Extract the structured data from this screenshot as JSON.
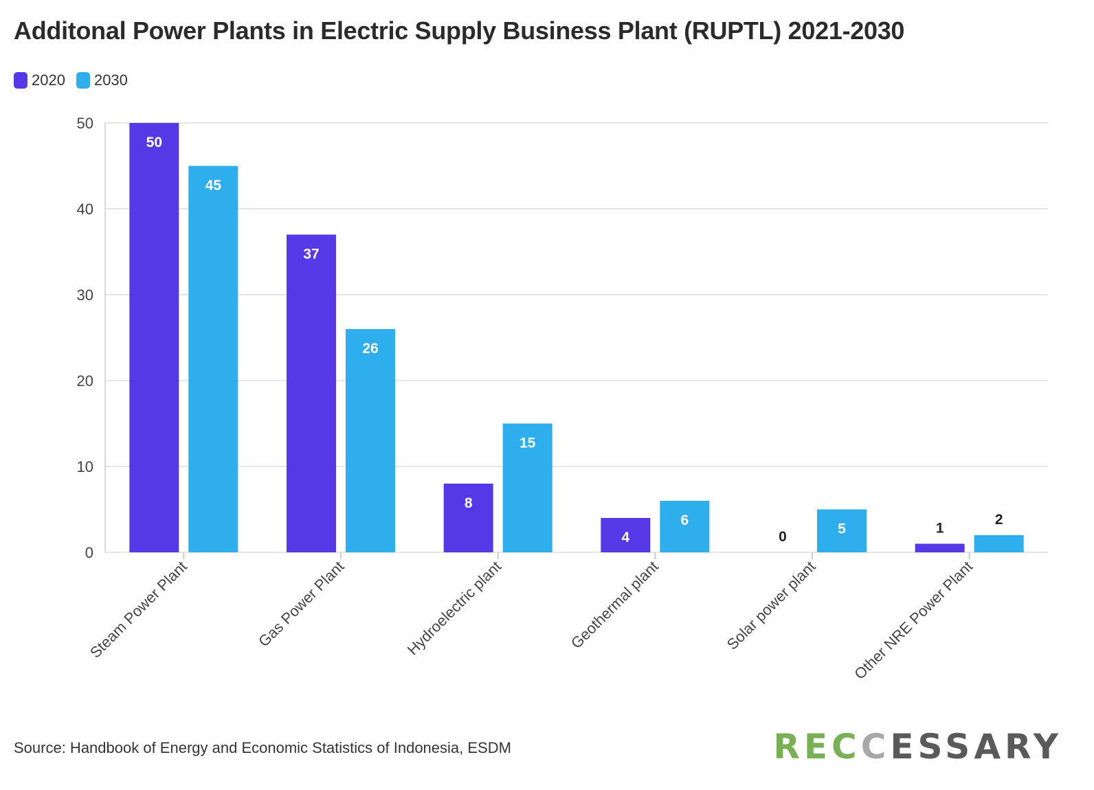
{
  "colors": {
    "series_2020": "#5639e6",
    "series_2030": "#2eaeed",
    "grid": "#e6e6e6",
    "axis_text": "#444444"
  },
  "chart_data": {
    "type": "bar",
    "title": "Additonal Power Plants in Electric Supply Business Plant (RUPTL) 2021-2030",
    "categories": [
      "Steam Power Plant",
      "Gas Power Plant",
      "Hydroelectric plant",
      "Geothermal plant",
      "Solar power plant",
      "Other NRE Power Plant"
    ],
    "series": [
      {
        "name": "2020",
        "values": [
          50,
          37,
          8,
          4,
          0,
          1
        ]
      },
      {
        "name": "2030",
        "values": [
          45,
          26,
          15,
          6,
          5,
          2
        ]
      }
    ],
    "ylim": [
      0,
      50
    ],
    "yticks": [
      0,
      10,
      20,
      30,
      40,
      50
    ],
    "grid": true,
    "legend": "top-left",
    "source": "Source: Handbook of Energy and Economic Statistics of Indonesia, ESDM"
  },
  "logo": {
    "part1": "REC",
    "part2": "C",
    "part3": "ESSARY"
  }
}
